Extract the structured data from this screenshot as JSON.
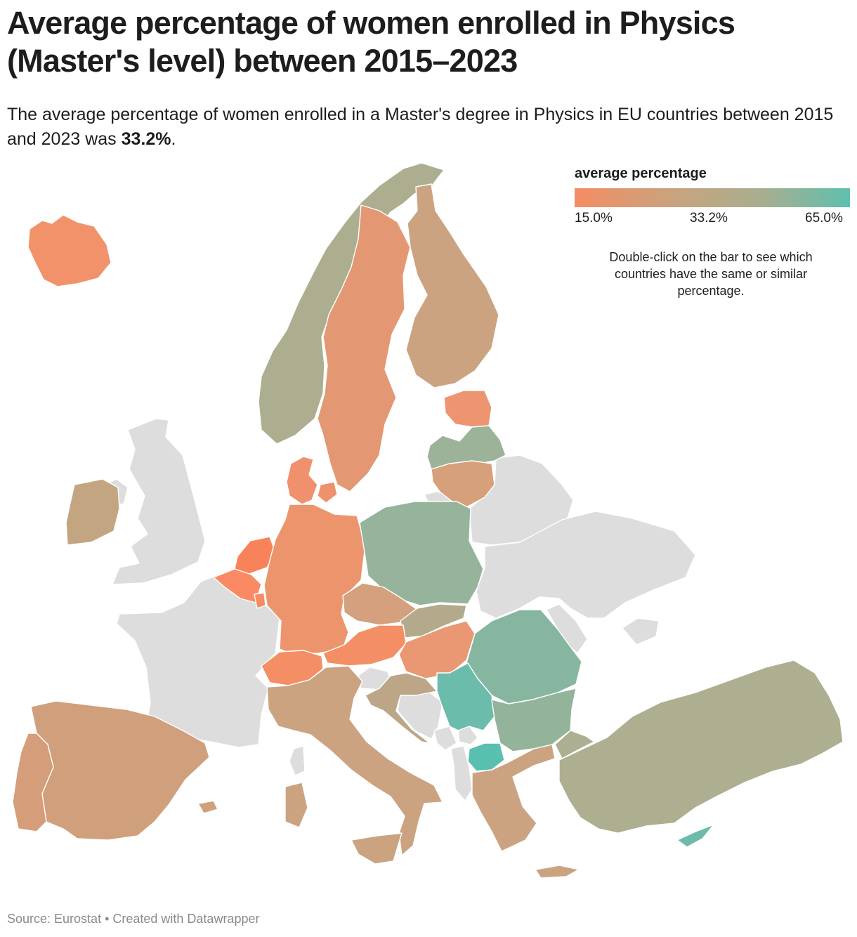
{
  "title": "Average percentage of women enrolled in Physics (Master's level) between 2015–2023",
  "description": {
    "text_before": "The average percentage of women enrolled in a Master's degree in Physics in EU countries between 2015 and 2023 was ",
    "highlight": "33.2%",
    "text_after": "."
  },
  "legend": {
    "title": "average percentage",
    "min_label": "15.0%",
    "mid_label": "33.2%",
    "max_label": "65.0%",
    "min_value": 15.0,
    "mid_value": 33.2,
    "max_value": 65.0,
    "colors": {
      "low": "#f58c63",
      "mid": "#c8a47e",
      "mid_high": "#a8ae8e",
      "high": "#5ec0ae"
    },
    "note": "Double-click on the bar to see which countries have the same or similar percentage."
  },
  "colors": {
    "no_data": "#dddddd",
    "border": "#ffffff",
    "by_country": {
      "Iceland": "#f2926a",
      "Norway": "#adae8f",
      "Sweden": "#e39873",
      "Finland": "#cba381",
      "Estonia": "#ed9470",
      "Latvia": "#9cb299",
      "Lithuania": "#d6a07b",
      "Denmark": "#ee916c",
      "Ireland": "#c4a582",
      "Netherlands": "#f8835a",
      "Belgium": "#f98a64",
      "Luxembourg": "#f78a63",
      "Germany": "#ec956d",
      "Poland": "#96b39b",
      "Czechia": "#d4a07e",
      "Slovakia": "#b3aa8b",
      "Austria": "#f48e65",
      "Hungary": "#e99873",
      "Switzerland": "#f48e65",
      "Slovenia": "#dddddd",
      "Croatia": "#bda688",
      "Romania": "#86b6a0",
      "Bulgaria": "#93b49b",
      "Serbia": "#6bbcab",
      "North Macedonia": "#59c0b0",
      "Greece": "#cba381",
      "Italy": "#cba381",
      "Spain": "#d09f7b",
      "Portugal": "#d59d79",
      "Turkey": "#aeae91",
      "Cyprus": "#6cbaa9"
    }
  },
  "footer": "Source: Eurostat • Created with Datawrapper"
}
